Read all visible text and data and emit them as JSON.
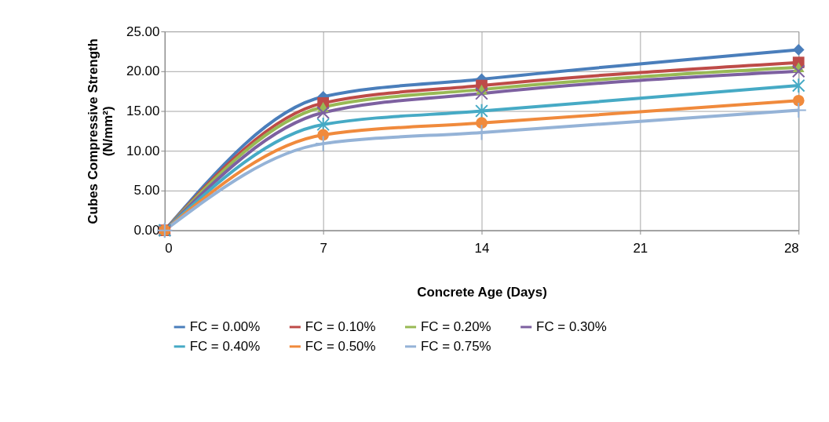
{
  "chart_data": {
    "type": "line",
    "xlabel": "Concrete Age (Days)",
    "ylabel": "Cubes Compressive Strength\n(N/mm²)",
    "x": [
      0,
      7,
      14,
      28
    ],
    "xlim": [
      0,
      28
    ],
    "xticks": [
      0,
      7,
      14,
      21,
      28
    ],
    "ylim": [
      0,
      25
    ],
    "yticks": [
      {
        "value": 0,
        "label": "0.00"
      },
      {
        "value": 5,
        "label": "5.00"
      },
      {
        "value": 10,
        "label": "10.00"
      },
      {
        "value": 15,
        "label": "15.00"
      },
      {
        "value": 20,
        "label": "20.00"
      },
      {
        "value": 25,
        "label": "25.00"
      }
    ],
    "grid": true,
    "legend": "bottom",
    "series": [
      {
        "name": "FC = 0.00%",
        "color": "#4a7ebb",
        "marker": "diamond",
        "values": [
          0,
          16.8,
          19.0,
          22.7
        ]
      },
      {
        "name": "FC = 0.10%",
        "color": "#be4b48",
        "marker": "square",
        "values": [
          0,
          16.0,
          18.2,
          21.1
        ]
      },
      {
        "name": "FC = 0.20%",
        "color": "#98b954",
        "marker": "triangle",
        "values": [
          0,
          15.5,
          17.7,
          20.5
        ]
      },
      {
        "name": "FC = 0.30%",
        "color": "#7d60a0",
        "marker": "cross",
        "values": [
          0,
          14.8,
          17.2,
          20.0
        ]
      },
      {
        "name": "FC = 0.40%",
        "color": "#46aac5",
        "marker": "cross",
        "values": [
          0,
          13.3,
          15.0,
          18.2
        ]
      },
      {
        "name": "FC = 0.50%",
        "color": "#f08a3c",
        "marker": "circle",
        "values": [
          0,
          12.0,
          13.5,
          16.3
        ]
      },
      {
        "name": "FC = 0.75%",
        "color": "#95b3d7",
        "marker": "plus",
        "values": [
          0,
          10.9,
          12.3,
          15.1
        ]
      }
    ]
  }
}
